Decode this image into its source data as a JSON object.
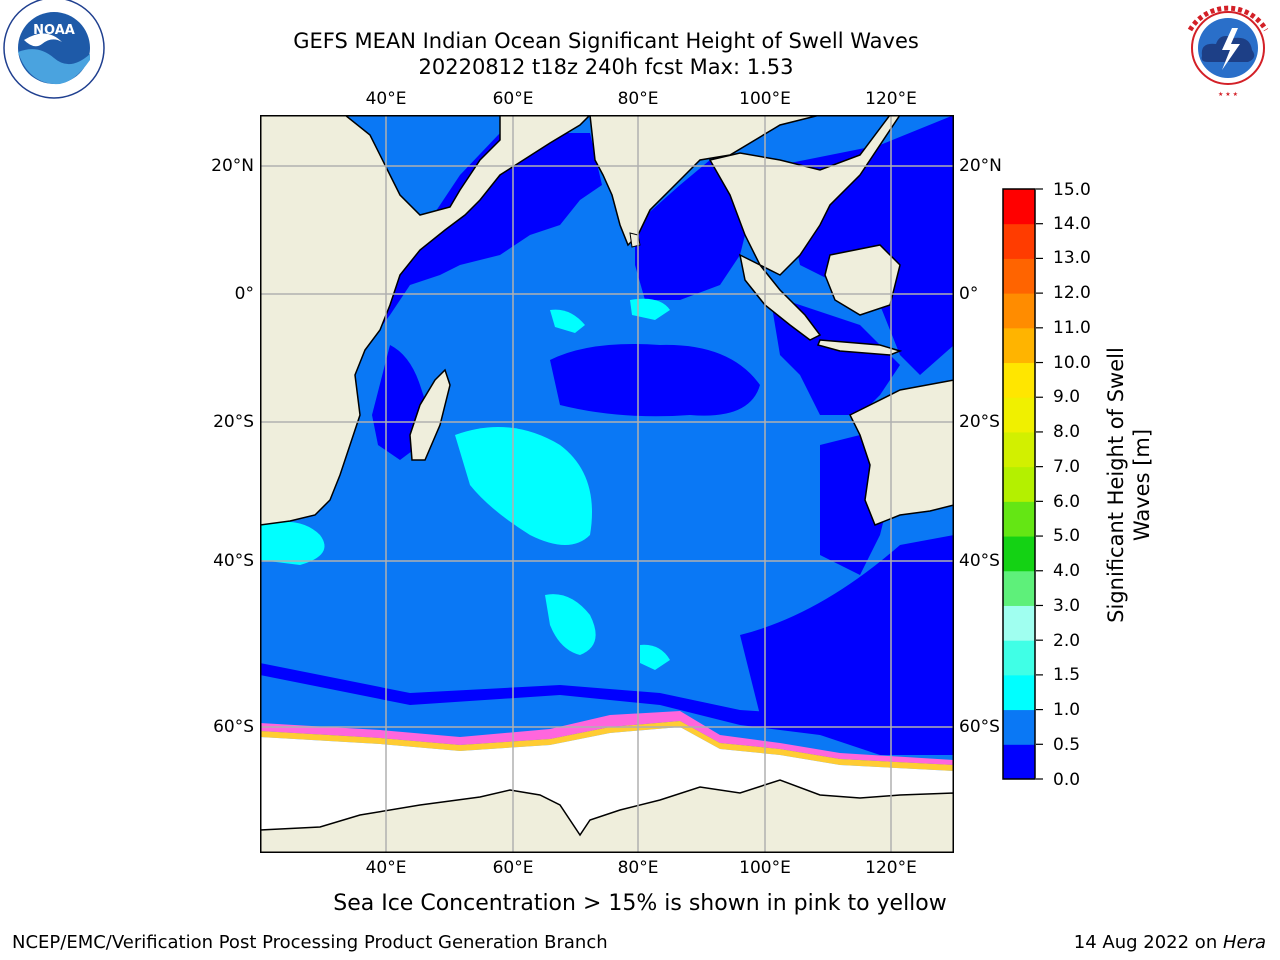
{
  "header": {
    "title_line1": "GEFS MEAN Indian Ocean Significant Height of Swell Waves",
    "title_line2": "20220812 t18z 240h fcst   Max: 1.53"
  },
  "logos": {
    "noara_name": "NOAA",
    "noaa_ring_text": "NATIONAL OCEANIC AND ATMOSPHERIC ADMINISTRATION · U.S. DEPARTMENT OF COMMERCE",
    "nws_ring_text": "NATIONAL WEATHER SERVICE"
  },
  "map": {
    "lon_labels": [
      "40°E",
      "60°E",
      "80°E",
      "100°E",
      "120°E"
    ],
    "lat_labels": [
      "20°N",
      "0°",
      "20°S",
      "40°S",
      "60°S"
    ],
    "colors": {
      "land": "#efeedc",
      "sea_ice": "#ffffff",
      "grid": "#b0b0b0"
    }
  },
  "colorbar": {
    "label_line1": "Significant Height of Swell",
    "label_line2": "Waves [m]",
    "ticks": [
      "0.0",
      "0.5",
      "1.0",
      "1.5",
      "2.0",
      "3.0",
      "4.0",
      "5.0",
      "6.0",
      "7.0",
      "8.0",
      "9.0",
      "10.0",
      "11.0",
      "12.0",
      "13.0",
      "14.0",
      "15.0"
    ],
    "colors": [
      "#0000ff",
      "#0a78f5",
      "#00ffff",
      "#40ffe6",
      "#a0fff0",
      "#5ef07a",
      "#14d214",
      "#64e614",
      "#b4f000",
      "#d2f000",
      "#f0f000",
      "#ffe600",
      "#ffb400",
      "#ff8c00",
      "#ff6400",
      "#ff3c00",
      "#ff0000"
    ]
  },
  "caption": "Sea Ice Concentration > 15% is shown in pink to yellow",
  "footer": {
    "left": "NCEP/EMC/Verification Post Processing Product Generation Branch",
    "right_prefix": "14 Aug 2022 on ",
    "right_machine": "Hera"
  }
}
